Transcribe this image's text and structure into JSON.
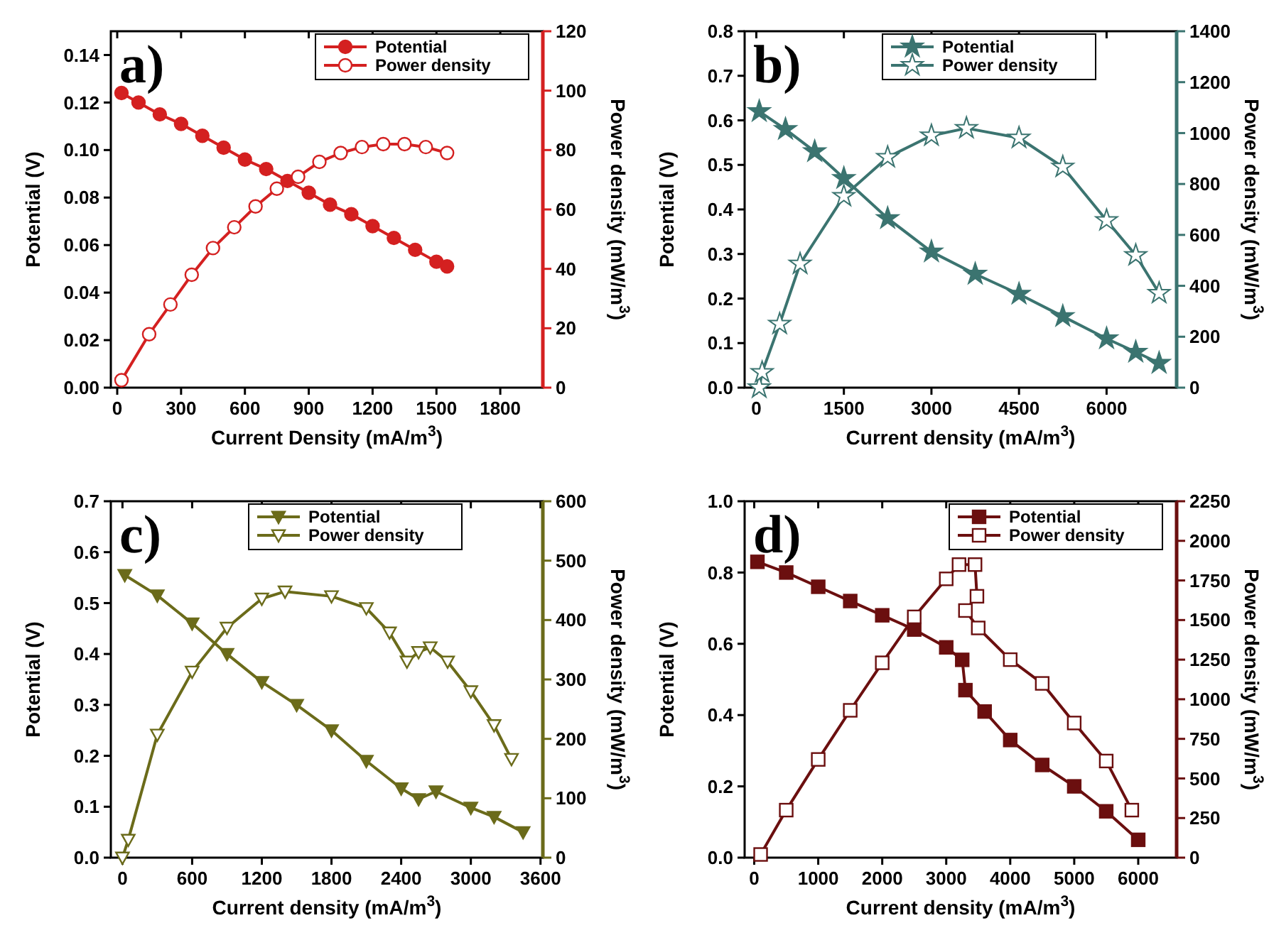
{
  "chart_data": [
    {
      "type": "line",
      "title": "a)",
      "xlabel": "Current Density (mA/m$^{3}$)",
      "ylabel": "Potential (V)",
      "y2label": "Power density (mW/m$^{3}$)",
      "xlim": [
        -30,
        2000
      ],
      "xticks": [
        0,
        300,
        600,
        900,
        1200,
        1500,
        1800
      ],
      "ylim": [
        0,
        0.15
      ],
      "yticks": [
        {
          "value": 0,
          "label": "0.00"
        },
        0.02,
        0.04,
        0.06,
        0.08,
        {
          "value": 0.1,
          "label": "0.10"
        },
        0.12,
        0.14
      ],
      "y2lim": [
        0,
        120
      ],
      "y2ticks": [
        0,
        20,
        40,
        60,
        80,
        100,
        120
      ],
      "legend": "top right",
      "grid": false,
      "line_style": "solid",
      "series": [
        {
          "name": "Potential",
          "color": "#d42020",
          "marker": "circle",
          "x": [
            20,
            100,
            200,
            300,
            400,
            500,
            600,
            700,
            800,
            900,
            1000,
            1100,
            1200,
            1300,
            1400,
            1500,
            1550
          ],
          "values": [
            0.124,
            0.12,
            0.115,
            0.111,
            0.106,
            0.101,
            0.096,
            0.092,
            0.087,
            0.082,
            0.077,
            0.073,
            0.068,
            0.063,
            0.058,
            0.053,
            0.051
          ]
        },
        {
          "name": "Power density",
          "color": "#d42020",
          "marker": "circle",
          "axis": "y2",
          "x": [
            20,
            150,
            250,
            350,
            450,
            550,
            650,
            750,
            850,
            950,
            1050,
            1150,
            1250,
            1350,
            1450,
            1550
          ],
          "values": [
            2.5,
            18,
            28,
            38,
            47,
            54,
            61,
            67,
            71,
            76,
            79,
            81,
            82,
            82,
            81,
            79
          ]
        }
      ]
    },
    {
      "type": "line",
      "title": "b)",
      "xlabel": "Current density (mA/m$^{3}$)",
      "ylabel": "Potential (V)",
      "y2label": "Power density (mW/m$^{3}$)",
      "xlim": [
        -200,
        7200
      ],
      "xticks": [
        0,
        1500,
        3000,
        4500,
        6000
      ],
      "ylim": [
        0,
        0.8
      ],
      "yticks": [
        {
          "value": 0,
          "label": "0.0"
        },
        0.1,
        0.2,
        0.3,
        0.4,
        0.5,
        0.6,
        0.7,
        0.8
      ],
      "y2lim": [
        0,
        1400
      ],
      "y2ticks": [
        0,
        200,
        400,
        600,
        800,
        1000,
        1200,
        1400
      ],
      "legend": "top",
      "grid": false,
      "line_style": "solid",
      "series": [
        {
          "name": "Potential",
          "color": "#3b7470",
          "marker": "star",
          "x": [
            50,
            500,
            1000,
            1500,
            2250,
            3000,
            3750,
            4500,
            5250,
            6000,
            6500,
            6900
          ],
          "values": [
            0.62,
            0.58,
            0.53,
            0.47,
            0.38,
            0.305,
            0.255,
            0.21,
            0.16,
            0.11,
            0.08,
            0.055
          ]
        },
        {
          "name": "Power density",
          "color": "#3b7470",
          "marker": "star",
          "axis": "y2",
          "x": [
            50,
            100,
            400,
            750,
            1500,
            2250,
            3000,
            3600,
            4500,
            5250,
            6000,
            6500,
            6900
          ],
          "values": [
            0,
            60,
            250,
            486,
            752,
            905,
            990,
            1019,
            981,
            867,
            657,
            520,
            371
          ]
        }
      ]
    },
    {
      "type": "line",
      "title": "c)",
      "xlabel": "Current density (mA/m$^{3}$)",
      "ylabel": "Potential (V)",
      "y2label": "Power density (mW/m$^{3}$)",
      "xlim": [
        -100,
        3620
      ],
      "xticks": [
        0,
        600,
        1200,
        1800,
        2400,
        3000,
        3600
      ],
      "ylim": [
        0,
        0.7
      ],
      "yticks": [
        {
          "value": 0,
          "label": "0.0"
        },
        0.1,
        0.2,
        0.3,
        0.4,
        0.5,
        0.6,
        0.7
      ],
      "y2lim": [
        0,
        600
      ],
      "y2ticks": [
        0,
        100,
        200,
        300,
        400,
        500,
        600
      ],
      "legend": "top",
      "grid": false,
      "line_style": "solid",
      "series": [
        {
          "name": "Potential",
          "color": "#6b6b1a",
          "marker": "triangle",
          "x": [
            20,
            300,
            600,
            900,
            1200,
            1500,
            1800,
            2100,
            2400,
            2550,
            2700,
            3000,
            3200,
            3450
          ],
          "values": [
            0.555,
            0.515,
            0.46,
            0.4,
            0.345,
            0.3,
            0.25,
            0.19,
            0.136,
            0.115,
            0.13,
            0.098,
            0.08,
            0.05
          ]
        },
        {
          "name": "Power density",
          "color": "#6b6b1a",
          "marker": "triangle",
          "axis": "y2",
          "x": [
            0,
            50,
            300,
            600,
            900,
            1200,
            1400,
            1800,
            2100,
            2300,
            2450,
            2550,
            2650,
            2800,
            3000,
            3200,
            3350
          ],
          "values": [
            0,
            30,
            207,
            313,
            387,
            436,
            448,
            440,
            420,
            379,
            330,
            346,
            354,
            330,
            280,
            223,
            166
          ]
        }
      ]
    },
    {
      "type": "line",
      "title": "d)",
      "xlabel": "Current density (mA/m$^{3}$)",
      "ylabel": "Potential (V)",
      "y2label": "Power density (mW/m$^{3}$)",
      "xlim": [
        -150,
        6600
      ],
      "xticks": [
        0,
        1000,
        2000,
        3000,
        4000,
        5000,
        6000
      ],
      "ylim": [
        0,
        1
      ],
      "yticks": [
        {
          "value": 0,
          "label": "0.0"
        },
        0.2,
        0.4,
        0.6,
        0.8,
        {
          "value": 1,
          "label": "1.0"
        }
      ],
      "y2lim": [
        0,
        2250
      ],
      "y2ticks": [
        0,
        250,
        500,
        750,
        1000,
        1250,
        1500,
        1750,
        2000,
        2250
      ],
      "legend": "top right",
      "grid": false,
      "line_style": "solid",
      "series": [
        {
          "name": "Potential",
          "color": "#6b0f0f",
          "marker": "square",
          "x": [
            50,
            500,
            1000,
            1500,
            2000,
            2500,
            3000,
            3250,
            3300,
            3600,
            4000,
            4500,
            5000,
            5500,
            6000
          ],
          "values": [
            0.83,
            0.8,
            0.76,
            0.72,
            0.68,
            0.64,
            0.59,
            0.555,
            0.47,
            0.41,
            0.33,
            0.26,
            0.2,
            0.13,
            0.05
          ]
        },
        {
          "name": "Power density",
          "color": "#6b0f0f",
          "marker": "square",
          "axis": "y2",
          "x": [
            100,
            500,
            1000,
            1500,
            2000,
            2500,
            3000,
            3200,
            3450,
            3480,
            3300,
            3500,
            4000,
            4500,
            5000,
            5500,
            5900
          ],
          "values": [
            20,
            300,
            620,
            930,
            1230,
            1520,
            1760,
            1850,
            1850,
            1650,
            1560,
            1450,
            1250,
            1100,
            850,
            610,
            300
          ]
        }
      ]
    }
  ]
}
